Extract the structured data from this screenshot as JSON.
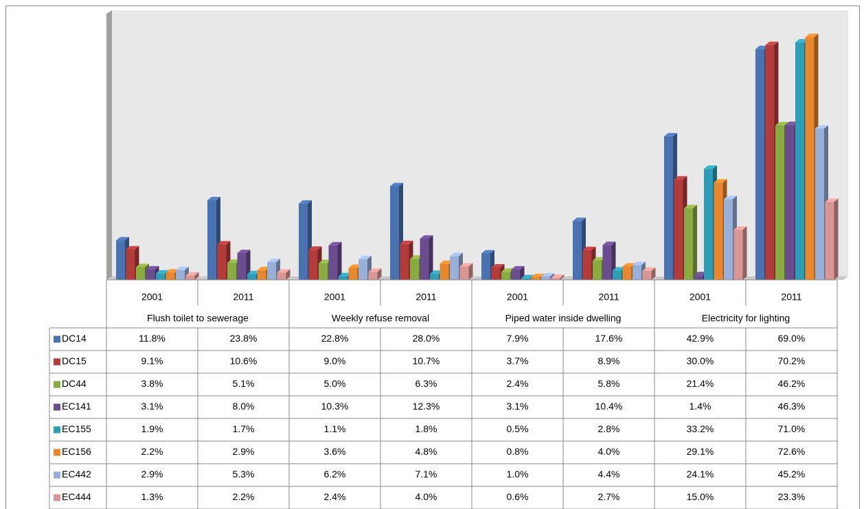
{
  "chart_data": {
    "type": "bar3d",
    "categories": [
      "2001",
      "2011",
      "2001",
      "2011",
      "2001",
      "2011",
      "2001",
      "2011"
    ],
    "category_groups": [
      "Flush toilet to sewerage",
      "Weekly refuse removal",
      "Piped water inside dwelling",
      "Electricity for lighting"
    ],
    "ylim": [
      0,
      80
    ],
    "series": [
      {
        "name": "DC14",
        "color": "#4a72b0",
        "values": [
          11.8,
          23.8,
          22.8,
          28.0,
          7.9,
          17.6,
          42.9,
          69.0
        ],
        "value_labels": [
          "11.8%",
          "23.8%",
          "22.8%",
          "28.0%",
          "7.9%",
          "17.6%",
          "42.9%",
          "69.0%"
        ]
      },
      {
        "name": "DC15",
        "color": "#b33c3a",
        "values": [
          9.1,
          10.6,
          9.0,
          10.7,
          3.7,
          8.9,
          30.0,
          70.2
        ],
        "value_labels": [
          "9.1%",
          "10.6%",
          "9.0%",
          "10.7%",
          "3.7%",
          "8.9%",
          "30.0%",
          "70.2%"
        ]
      },
      {
        "name": "DC44",
        "color": "#8aaa42",
        "values": [
          3.8,
          5.1,
          5.0,
          6.3,
          2.4,
          5.8,
          21.4,
          46.2
        ],
        "value_labels": [
          "3.8%",
          "5.1%",
          "5.0%",
          "6.3%",
          "2.4%",
          "5.8%",
          "21.4%",
          "46.2%"
        ]
      },
      {
        "name": "EC141",
        "color": "#6b4d8f",
        "values": [
          3.1,
          8.0,
          10.3,
          12.3,
          3.1,
          10.4,
          1.4,
          46.3
        ],
        "value_labels": [
          "3.1%",
          "8.0%",
          "10.3%",
          "12.3%",
          "3.1%",
          "10.4%",
          "1.4%",
          "46.3%"
        ]
      },
      {
        "name": "EC155",
        "color": "#2f9db5",
        "values": [
          1.9,
          1.7,
          1.1,
          1.8,
          0.5,
          2.8,
          33.2,
          71.0
        ],
        "value_labels": [
          "1.9%",
          "1.7%",
          "1.1%",
          "1.8%",
          "0.5%",
          "2.8%",
          "33.2%",
          "71.0%"
        ]
      },
      {
        "name": "EC156",
        "color": "#e8872d",
        "values": [
          2.2,
          2.9,
          3.6,
          4.8,
          0.8,
          4.0,
          29.1,
          72.6
        ],
        "value_labels": [
          "2.2%",
          "2.9%",
          "3.6%",
          "4.8%",
          "0.8%",
          "4.0%",
          "29.1%",
          "72.6%"
        ]
      },
      {
        "name": "EC442",
        "color": "#98b0d8",
        "values": [
          2.9,
          5.3,
          6.2,
          7.1,
          1.0,
          4.4,
          24.1,
          45.2
        ],
        "value_labels": [
          "2.9%",
          "5.3%",
          "6.2%",
          "7.1%",
          "1.0%",
          "4.4%",
          "24.1%",
          "45.2%"
        ]
      },
      {
        "name": "EC444",
        "color": "#d99694",
        "values": [
          1.3,
          2.2,
          2.4,
          4.0,
          0.6,
          2.7,
          15.0,
          23.3
        ],
        "value_labels": [
          "1.3%",
          "2.2%",
          "2.4%",
          "4.0%",
          "0.6%",
          "2.7%",
          "15.0%",
          "23.3%"
        ]
      }
    ]
  }
}
